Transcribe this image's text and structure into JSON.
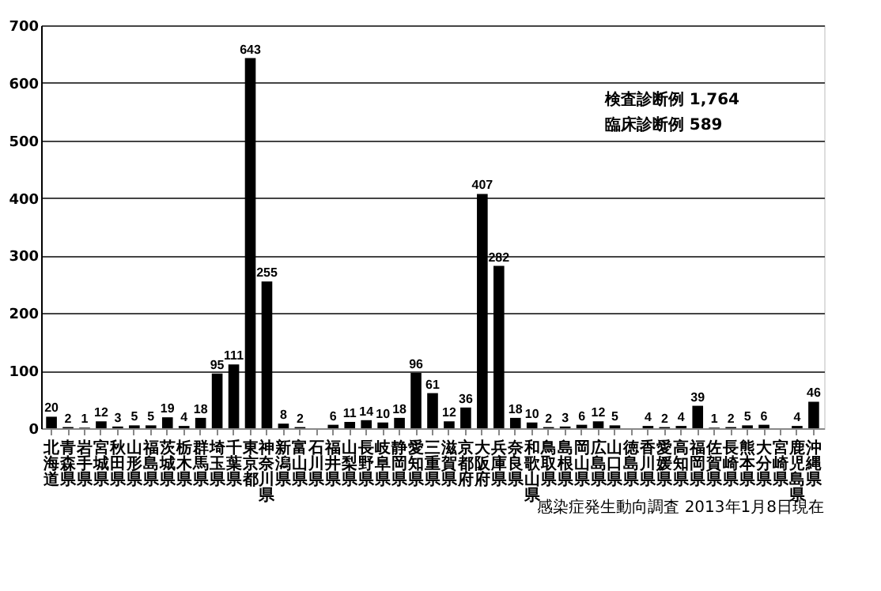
{
  "chart_data": {
    "type": "bar",
    "categories": [
      "北海道",
      "青森県",
      "岩手県",
      "宮城県",
      "秋田県",
      "山形県",
      "福島県",
      "茨城県",
      "栃木県",
      "群馬県",
      "埼玉県",
      "千葉県",
      "東京都",
      "神奈川県",
      "新潟県",
      "富山県",
      "石川県",
      "福井県",
      "山梨県",
      "長野県",
      "岐阜県",
      "静岡県",
      "愛知県",
      "三重県",
      "滋賀県",
      "京都府",
      "大阪府",
      "兵庫県",
      "奈良県",
      "和歌山県",
      "鳥取県",
      "島根県",
      "岡山県",
      "広島県",
      "山口県",
      "徳島県",
      "香川県",
      "愛媛県",
      "高知県",
      "福岡県",
      "佐賀県",
      "長崎県",
      "熊本県",
      "大分県",
      "宮崎県",
      "鹿児島県",
      "沖縄県"
    ],
    "values": [
      20,
      2,
      1,
      12,
      3,
      5,
      5,
      19,
      4,
      18,
      95,
      111,
      643,
      255,
      8,
      2,
      0,
      6,
      11,
      14,
      10,
      18,
      96,
      61,
      12,
      36,
      407,
      282,
      18,
      10,
      2,
      3,
      6,
      12,
      5,
      0,
      4,
      2,
      4,
      39,
      1,
      2,
      5,
      6,
      0,
      4,
      46
    ],
    "value_labels": [
      "20",
      "2",
      "1",
      "12",
      "3",
      "5",
      "5",
      "19",
      "4",
      "18",
      "95",
      "111",
      "643",
      "255",
      "8",
      "2",
      null,
      "6",
      "11",
      "14",
      "10",
      "18",
      "96",
      "61",
      "12",
      "36",
      "407",
      "282",
      "18",
      "10",
      "2",
      "3",
      "6",
      "12",
      "5",
      null,
      "4",
      "2",
      "4",
      "39",
      "1",
      "2",
      "5",
      "6",
      null,
      "4",
      "46"
    ],
    "color": "#000000",
    "ylim": [
      0,
      700
    ],
    "yticks": [
      0,
      100,
      200,
      300,
      400,
      500,
      600,
      700
    ],
    "grid": "y",
    "annotations": [
      "検査診断例  1,764",
      "臨床診断例  589",
      "感染症発生動向調査 2013年1月8日現在"
    ]
  }
}
